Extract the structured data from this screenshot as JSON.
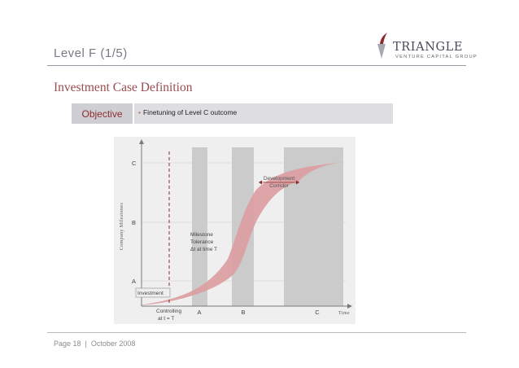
{
  "slide": {
    "title": "Level F (1/5)"
  },
  "logo": {
    "name": "TRIANGLE",
    "subtitle": "VENTURE CAPITAL GROUP"
  },
  "section": {
    "heading": "Investment Case Definition"
  },
  "objective": {
    "label": "Objective",
    "bullet": "•",
    "value": "Finetuning of Level C outcome"
  },
  "diagram": {
    "y_axis_label": "Company Milestones",
    "y_ticks": [
      "A",
      "B",
      "C"
    ],
    "x_axis_label": "Time",
    "x_ticks": [
      "A",
      "B",
      "C"
    ],
    "labels": {
      "corridor_line1": "Development",
      "corridor_line2": "Corridor",
      "tolerance_line1": "Milestone",
      "tolerance_line2": "Tolerance",
      "tolerance_line3": "Δt at time T",
      "investment": "Investment",
      "controlling_line1": "Controlling",
      "controlling_line2": "at t = T"
    },
    "colors": {
      "corridor": "#dc9ea3",
      "bands": "#cbcbcb",
      "axis": "#7a7a7a",
      "dashed": "#8b2b30"
    }
  },
  "footer": {
    "page": "Page 18",
    "separator": "|",
    "date": "October 2008"
  }
}
